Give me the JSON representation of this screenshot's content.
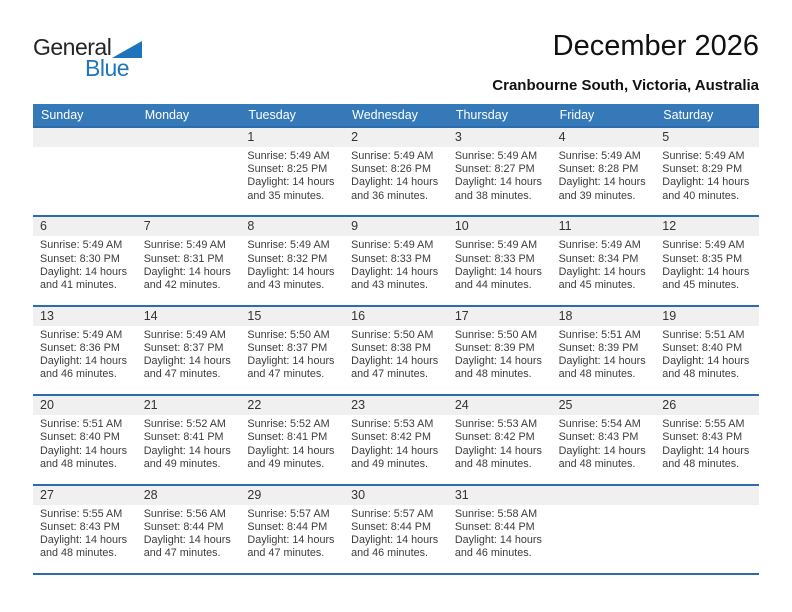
{
  "logo": {
    "text_black": "General",
    "text_blue": "Blue",
    "triangle_icon": "blue-flag-triangle"
  },
  "header": {
    "title": "December 2026",
    "subtitle": "Cranbourne South, Victoria, Australia"
  },
  "colors": {
    "header_bar_blue": "#3579b8",
    "week_separator_blue": "#2a6cae",
    "day_band_gray": "#f0f0f0",
    "logo_blue": "#2076bc",
    "body_text": "#3c3c3c"
  },
  "calendar": {
    "day_headers": [
      "Sunday",
      "Monday",
      "Tuesday",
      "Wednesday",
      "Thursday",
      "Friday",
      "Saturday"
    ],
    "weeks": [
      [
        null,
        null,
        {
          "day": "1",
          "lines": [
            "Sunrise: 5:49 AM",
            "Sunset: 8:25 PM",
            "Daylight: 14 hours",
            "and 35 minutes."
          ]
        },
        {
          "day": "2",
          "lines": [
            "Sunrise: 5:49 AM",
            "Sunset: 8:26 PM",
            "Daylight: 14 hours",
            "and 36 minutes."
          ]
        },
        {
          "day": "3",
          "lines": [
            "Sunrise: 5:49 AM",
            "Sunset: 8:27 PM",
            "Daylight: 14 hours",
            "and 38 minutes."
          ]
        },
        {
          "day": "4",
          "lines": [
            "Sunrise: 5:49 AM",
            "Sunset: 8:28 PM",
            "Daylight: 14 hours",
            "and 39 minutes."
          ]
        },
        {
          "day": "5",
          "lines": [
            "Sunrise: 5:49 AM",
            "Sunset: 8:29 PM",
            "Daylight: 14 hours",
            "and 40 minutes."
          ]
        }
      ],
      [
        {
          "day": "6",
          "lines": [
            "Sunrise: 5:49 AM",
            "Sunset: 8:30 PM",
            "Daylight: 14 hours",
            "and 41 minutes."
          ]
        },
        {
          "day": "7",
          "lines": [
            "Sunrise: 5:49 AM",
            "Sunset: 8:31 PM",
            "Daylight: 14 hours",
            "and 42 minutes."
          ]
        },
        {
          "day": "8",
          "lines": [
            "Sunrise: 5:49 AM",
            "Sunset: 8:32 PM",
            "Daylight: 14 hours",
            "and 43 minutes."
          ]
        },
        {
          "day": "9",
          "lines": [
            "Sunrise: 5:49 AM",
            "Sunset: 8:33 PM",
            "Daylight: 14 hours",
            "and 43 minutes."
          ]
        },
        {
          "day": "10",
          "lines": [
            "Sunrise: 5:49 AM",
            "Sunset: 8:33 PM",
            "Daylight: 14 hours",
            "and 44 minutes."
          ]
        },
        {
          "day": "11",
          "lines": [
            "Sunrise: 5:49 AM",
            "Sunset: 8:34 PM",
            "Daylight: 14 hours",
            "and 45 minutes."
          ]
        },
        {
          "day": "12",
          "lines": [
            "Sunrise: 5:49 AM",
            "Sunset: 8:35 PM",
            "Daylight: 14 hours",
            "and 45 minutes."
          ]
        }
      ],
      [
        {
          "day": "13",
          "lines": [
            "Sunrise: 5:49 AM",
            "Sunset: 8:36 PM",
            "Daylight: 14 hours",
            "and 46 minutes."
          ]
        },
        {
          "day": "14",
          "lines": [
            "Sunrise: 5:49 AM",
            "Sunset: 8:37 PM",
            "Daylight: 14 hours",
            "and 47 minutes."
          ]
        },
        {
          "day": "15",
          "lines": [
            "Sunrise: 5:50 AM",
            "Sunset: 8:37 PM",
            "Daylight: 14 hours",
            "and 47 minutes."
          ]
        },
        {
          "day": "16",
          "lines": [
            "Sunrise: 5:50 AM",
            "Sunset: 8:38 PM",
            "Daylight: 14 hours",
            "and 47 minutes."
          ]
        },
        {
          "day": "17",
          "lines": [
            "Sunrise: 5:50 AM",
            "Sunset: 8:39 PM",
            "Daylight: 14 hours",
            "and 48 minutes."
          ]
        },
        {
          "day": "18",
          "lines": [
            "Sunrise: 5:51 AM",
            "Sunset: 8:39 PM",
            "Daylight: 14 hours",
            "and 48 minutes."
          ]
        },
        {
          "day": "19",
          "lines": [
            "Sunrise: 5:51 AM",
            "Sunset: 8:40 PM",
            "Daylight: 14 hours",
            "and 48 minutes."
          ]
        }
      ],
      [
        {
          "day": "20",
          "lines": [
            "Sunrise: 5:51 AM",
            "Sunset: 8:40 PM",
            "Daylight: 14 hours",
            "and 48 minutes."
          ]
        },
        {
          "day": "21",
          "lines": [
            "Sunrise: 5:52 AM",
            "Sunset: 8:41 PM",
            "Daylight: 14 hours",
            "and 49 minutes."
          ]
        },
        {
          "day": "22",
          "lines": [
            "Sunrise: 5:52 AM",
            "Sunset: 8:41 PM",
            "Daylight: 14 hours",
            "and 49 minutes."
          ]
        },
        {
          "day": "23",
          "lines": [
            "Sunrise: 5:53 AM",
            "Sunset: 8:42 PM",
            "Daylight: 14 hours",
            "and 49 minutes."
          ]
        },
        {
          "day": "24",
          "lines": [
            "Sunrise: 5:53 AM",
            "Sunset: 8:42 PM",
            "Daylight: 14 hours",
            "and 48 minutes."
          ]
        },
        {
          "day": "25",
          "lines": [
            "Sunrise: 5:54 AM",
            "Sunset: 8:43 PM",
            "Daylight: 14 hours",
            "and 48 minutes."
          ]
        },
        {
          "day": "26",
          "lines": [
            "Sunrise: 5:55 AM",
            "Sunset: 8:43 PM",
            "Daylight: 14 hours",
            "and 48 minutes."
          ]
        }
      ],
      [
        {
          "day": "27",
          "lines": [
            "Sunrise: 5:55 AM",
            "Sunset: 8:43 PM",
            "Daylight: 14 hours",
            "and 48 minutes."
          ]
        },
        {
          "day": "28",
          "lines": [
            "Sunrise: 5:56 AM",
            "Sunset: 8:44 PM",
            "Daylight: 14 hours",
            "and 47 minutes."
          ]
        },
        {
          "day": "29",
          "lines": [
            "Sunrise: 5:57 AM",
            "Sunset: 8:44 PM",
            "Daylight: 14 hours",
            "and 47 minutes."
          ]
        },
        {
          "day": "30",
          "lines": [
            "Sunrise: 5:57 AM",
            "Sunset: 8:44 PM",
            "Daylight: 14 hours",
            "and 46 minutes."
          ]
        },
        {
          "day": "31",
          "lines": [
            "Sunrise: 5:58 AM",
            "Sunset: 8:44 PM",
            "Daylight: 14 hours",
            "and 46 minutes."
          ]
        },
        null,
        null
      ]
    ]
  }
}
